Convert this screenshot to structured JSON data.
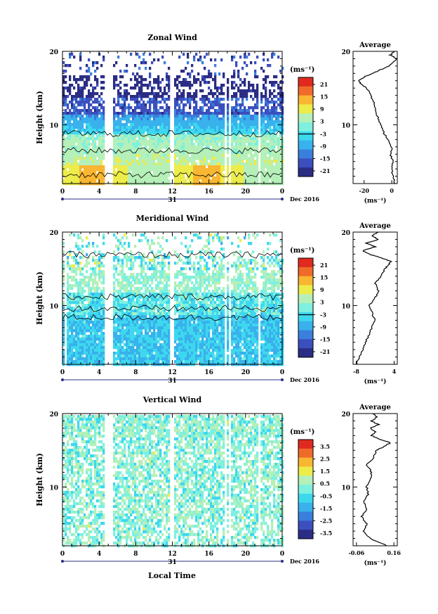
{
  "figure": {
    "x_axis_label": "Local Time",
    "date_label": "Dec 2016",
    "day_label": "31"
  },
  "colors": {
    "ramp": [
      "#2b2d84",
      "#3c4fbe",
      "#3a7fdc",
      "#38b1ec",
      "#3ed8ee",
      "#7ef0e0",
      "#b4f0b8",
      "#ecec4a",
      "#f8b632",
      "#f06a2a",
      "#e02a20"
    ],
    "zero_contour": "#000000",
    "background": "#ffffff"
  },
  "chart_data": [
    {
      "type": "heatmap",
      "title": "Zonal Wind",
      "ylabel": "Height (km)",
      "xlim": [
        0,
        24
      ],
      "ylim": [
        2,
        20
      ],
      "x_ticks": [
        "0",
        "4",
        "8",
        "12",
        "16",
        "20",
        "0"
      ],
      "y_ticks": [
        "10",
        "20"
      ],
      "colorbar": {
        "unit": "(ms⁻¹)",
        "ticks": [
          "21",
          "15",
          "9",
          "3",
          "-3",
          "-9",
          "-15",
          "-21"
        ],
        "range": [
          -24,
          24
        ]
      },
      "data_gaps_hours": [
        [
          4.6,
          4.9
        ],
        [
          5.0,
          5.4
        ],
        [
          11.7,
          12.0
        ],
        [
          17.6,
          17.8
        ],
        [
          18.1,
          18.3
        ],
        [
          21.2,
          21.5
        ]
      ],
      "profile": {
        "title": "Average",
        "xlabel": "(ms⁻¹)",
        "x_ticks": [
          "-20",
          "0"
        ],
        "xlim": [
          -28,
          4
        ],
        "y_ticks": [
          "10",
          "20"
        ],
        "heights_km": [
          2,
          3,
          4,
          5,
          6,
          7,
          8,
          9,
          10,
          11,
          12,
          13,
          14,
          15,
          15.5,
          16,
          16.5,
          17,
          17.5,
          18,
          18.5,
          19,
          19.5,
          20
        ],
        "values": [
          2,
          1,
          0,
          1,
          -1,
          0,
          -3,
          -6,
          -8,
          -10,
          -12,
          -13,
          -15,
          -18,
          -22,
          -24,
          -20,
          -14,
          -8,
          -2,
          1,
          3,
          -1,
          2
        ]
      }
    },
    {
      "type": "heatmap",
      "title": "Meridional Wind",
      "ylabel": "Height (km)",
      "xlim": [
        0,
        24
      ],
      "ylim": [
        2,
        20
      ],
      "x_ticks": [
        "0",
        "4",
        "8",
        "12",
        "16",
        "20",
        "0"
      ],
      "y_ticks": [
        "10",
        "20"
      ],
      "colorbar": {
        "unit": "(ms⁻¹)",
        "ticks": [
          "21",
          "15",
          "9",
          "3",
          "-3",
          "-9",
          "-15",
          "-21"
        ],
        "range": [
          -24,
          24
        ]
      },
      "data_gaps_hours": [
        [
          0.2,
          0.4
        ],
        [
          4.6,
          4.9
        ],
        [
          5.0,
          5.4
        ],
        [
          11.7,
          12.0
        ],
        [
          17.6,
          17.8
        ],
        [
          18.1,
          18.3
        ],
        [
          21.2,
          21.5
        ]
      ],
      "profile": {
        "title": "Average",
        "xlabel": "(ms⁻¹)",
        "x_ticks": [
          "-8",
          "4"
        ],
        "xlim": [
          -9,
          5
        ],
        "y_ticks": [
          "10",
          "20"
        ],
        "heights_km": [
          2,
          3,
          4,
          5,
          6,
          7,
          8,
          9,
          10,
          11,
          12,
          13,
          14,
          15,
          15.5,
          16,
          16.5,
          17,
          17.5,
          18,
          18.5,
          19,
          19.5,
          20
        ],
        "values": [
          -8,
          -7,
          -6,
          -5,
          -4,
          -3,
          -2,
          -3,
          -4,
          -2,
          -1,
          -2,
          0,
          1,
          2,
          3,
          0,
          -4,
          -6,
          -2,
          -5,
          -1,
          -3,
          -1
        ]
      }
    },
    {
      "type": "heatmap",
      "title": "Vertical Wind",
      "ylabel": "Height (km)",
      "xlabel": "Local Time",
      "xlim": [
        0,
        24
      ],
      "ylim": [
        2,
        20
      ],
      "x_ticks": [
        "0",
        "4",
        "8",
        "12",
        "16",
        "20",
        "0"
      ],
      "y_ticks": [
        "10",
        "20"
      ],
      "colorbar": {
        "unit": "(ms⁻¹)",
        "ticks": [
          "3.5",
          "2.5",
          "1.5",
          "0.5",
          "-0.5",
          "-1.5",
          "-2.5",
          "-3.5"
        ],
        "range": [
          -4,
          4
        ]
      },
      "data_gaps_hours": [
        [
          4.6,
          4.9
        ],
        [
          5.0,
          5.4
        ],
        [
          11.7,
          12.0
        ],
        [
          17.6,
          17.8
        ],
        [
          18.1,
          18.3
        ],
        [
          21.2,
          21.5
        ]
      ],
      "profile": {
        "title": "Average",
        "xlabel": "(ms⁻¹)",
        "x_ticks": [
          "-0.06",
          "0.16"
        ],
        "xlim": [
          -0.08,
          0.18
        ],
        "y_ticks": [
          "10",
          "20"
        ],
        "heights_km": [
          2,
          3,
          4,
          5,
          6,
          7,
          8,
          9,
          10,
          11,
          12,
          13,
          14,
          15,
          15.5,
          16,
          16.5,
          17,
          17.5,
          18,
          18.5,
          19,
          19.5,
          20
        ],
        "values": [
          0.12,
          0.02,
          -0.02,
          0.0,
          -0.03,
          0.0,
          -0.02,
          0.01,
          0.0,
          0.02,
          0.03,
          0.0,
          0.04,
          0.06,
          0.1,
          0.14,
          0.08,
          0.03,
          0.05,
          0.02,
          0.07,
          0.03,
          0.06,
          0.04
        ]
      }
    }
  ]
}
